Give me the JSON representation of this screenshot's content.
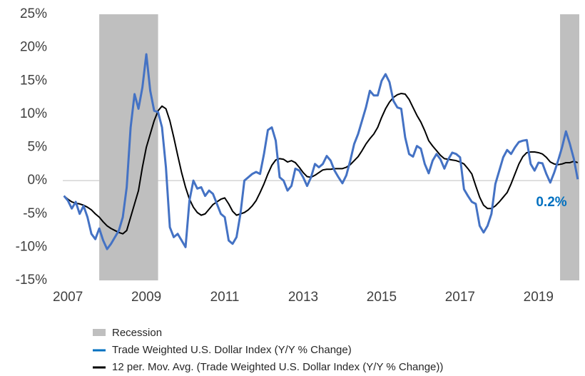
{
  "chart_data": {
    "type": "line",
    "x": [
      2006.9,
      2007.0,
      2007.1,
      2007.2,
      2007.3,
      2007.4,
      2007.5,
      2007.6,
      2007.7,
      2007.8,
      2007.9,
      2008.0,
      2008.1,
      2008.2,
      2008.3,
      2008.4,
      2008.5,
      2008.6,
      2008.7,
      2008.8,
      2008.9,
      2009.0,
      2009.1,
      2009.2,
      2009.3,
      2009.4,
      2009.5,
      2009.6,
      2009.7,
      2009.8,
      2009.9,
      2010.0,
      2010.1,
      2010.2,
      2010.3,
      2010.4,
      2010.5,
      2010.6,
      2010.7,
      2010.8,
      2010.9,
      2011.0,
      2011.1,
      2011.2,
      2011.3,
      2011.4,
      2011.5,
      2011.6,
      2011.7,
      2011.8,
      2011.9,
      2012.0,
      2012.1,
      2012.2,
      2012.3,
      2012.4,
      2012.5,
      2012.6,
      2012.7,
      2012.8,
      2012.9,
      2013.0,
      2013.1,
      2013.2,
      2013.3,
      2013.4,
      2013.5,
      2013.6,
      2013.7,
      2013.8,
      2013.9,
      2014.0,
      2014.1,
      2014.2,
      2014.3,
      2014.4,
      2014.5,
      2014.6,
      2014.7,
      2014.8,
      2014.9,
      2015.0,
      2015.1,
      2015.2,
      2015.3,
      2015.4,
      2015.5,
      2015.6,
      2015.7,
      2015.8,
      2015.9,
      2016.0,
      2016.1,
      2016.2,
      2016.3,
      2016.4,
      2016.5,
      2016.6,
      2016.7,
      2016.8,
      2016.9,
      2017.0,
      2017.1,
      2017.2,
      2017.3,
      2017.4,
      2017.5,
      2017.6,
      2017.7,
      2017.8,
      2017.9,
      2018.0,
      2018.1,
      2018.2,
      2018.3,
      2018.4,
      2018.5,
      2018.6,
      2018.7,
      2018.8,
      2018.9,
      2019.0,
      2019.1,
      2019.2,
      2019.3,
      2019.4,
      2019.5,
      2019.6,
      2019.7,
      2019.8,
      2019.9,
      2020.0
    ],
    "series": [
      {
        "name": "Trade Weighted U.S. Dollar Index (Y/Y % Change)",
        "color": "#4472c4",
        "legend_color": "#0070c0",
        "width": 3,
        "values": [
          -2.3,
          -3,
          -4.2,
          -3.2,
          -5,
          -3.8,
          -5.5,
          -8,
          -8.8,
          -7.2,
          -9,
          -10.3,
          -9.5,
          -8.5,
          -7.5,
          -5.5,
          -1,
          8,
          13,
          10.8,
          14,
          19,
          13.5,
          10.5,
          10.3,
          8,
          2,
          -7,
          -8.5,
          -8,
          -9,
          -10,
          -3,
          0,
          -1.2,
          -1,
          -2.3,
          -1.5,
          -2,
          -3.5,
          -5,
          -5.5,
          -9,
          -9.5,
          -8.5,
          -5,
          0,
          0.5,
          1,
          1.3,
          1,
          4,
          7.6,
          8,
          6,
          0.5,
          0,
          -1.5,
          -0.8,
          1.8,
          1.5,
          0.5,
          -0.8,
          0.5,
          2.5,
          2,
          2.5,
          3.7,
          3,
          1.5,
          0.5,
          -0.4,
          0.8,
          3,
          5.5,
          7,
          9,
          11,
          13.5,
          12.8,
          12.8,
          15,
          16,
          14.8,
          12,
          11,
          10.8,
          6.5,
          4,
          3.6,
          5.2,
          4.8,
          2.5,
          1.1,
          3,
          4,
          3.2,
          1.8,
          3.2,
          4.2,
          4,
          3.5,
          -1.3,
          -2.3,
          -3.2,
          -3.5,
          -6.8,
          -7.8,
          -6.8,
          -5,
          -0.5,
          1.5,
          3.5,
          4.6,
          4,
          5,
          5.8,
          6,
          6.1,
          2.5,
          1.5,
          2.7,
          2.6,
          1,
          -0.3,
          1.2,
          3,
          5,
          7.4,
          5.5,
          3.3,
          0.2
        ]
      },
      {
        "name": "12 per. Mov. Avg. (Trade Weighted U.S. Dollar Index (Y/Y % Change))",
        "color": "#000000",
        "width": 2,
        "values": [
          -2.3,
          -2.8,
          -3.2,
          -3.4,
          -3.5,
          -3.7,
          -4,
          -4.4,
          -5,
          -5.5,
          -6.2,
          -6.8,
          -7.2,
          -7.5,
          -7.8,
          -8,
          -7.5,
          -5.5,
          -3.5,
          -1.5,
          2,
          5,
          7,
          9,
          10.5,
          11.2,
          10.8,
          9,
          6.5,
          3.8,
          1.2,
          -1,
          -2.8,
          -4,
          -4.8,
          -5.2,
          -5,
          -4.3,
          -3.6,
          -3.2,
          -2.8,
          -2.6,
          -3.5,
          -4.6,
          -5.2,
          -5,
          -4.8,
          -4.4,
          -3.8,
          -3,
          -1.8,
          -0.5,
          1,
          2.3,
          3.1,
          3.3,
          3.2,
          2.8,
          3,
          2.7,
          2,
          1.2,
          0.6,
          0.5,
          0.8,
          1.2,
          1.6,
          1.7,
          1.7,
          1.8,
          1.8,
          1.8,
          2,
          2.4,
          3,
          3.6,
          4.5,
          5.5,
          6.3,
          7,
          8,
          9.5,
          10.8,
          11.8,
          12.5,
          12.9,
          13.1,
          13,
          12.2,
          11,
          9.8,
          8.8,
          7.5,
          6,
          5.2,
          4.5,
          3.8,
          3.3,
          3.2,
          3.1,
          3,
          2.8,
          2.5,
          1.8,
          1,
          -0.8,
          -2.5,
          -3.7,
          -4.2,
          -4.2,
          -3.8,
          -3.2,
          -2.5,
          -1.8,
          -0.5,
          1,
          2.5,
          3.6,
          4.2,
          4.3,
          4.3,
          4.2,
          4,
          3.5,
          2.8,
          2.5,
          2.4,
          2.5,
          2.7,
          2.7,
          2.9,
          2.7
        ]
      }
    ],
    "recession": {
      "name": "Recession",
      "color": "#bfbfbf",
      "periods": [
        [
          2007.8,
          2009.3
        ],
        [
          2019.55,
          2020.04
        ]
      ]
    },
    "annotation": {
      "text": "0.2%",
      "color": "#0070c0"
    },
    "xlim": [
      2006.87,
      2020.04
    ],
    "xticks": [
      2007,
      2009,
      2011,
      2013,
      2015,
      2017,
      2019
    ],
    "ylim": [
      -15,
      25
    ],
    "yticks": [
      {
        "value": -15,
        "label": "-15%"
      },
      {
        "value": -10,
        "label": "-10%"
      },
      {
        "value": -5,
        "label": "-5%"
      },
      {
        "value": 0,
        "label": "0%"
      },
      {
        "value": 5,
        "label": "5%"
      },
      {
        "value": 10,
        "label": "10%"
      },
      {
        "value": 15,
        "label": "15%"
      },
      {
        "value": 20,
        "label": "20%"
      },
      {
        "value": 25,
        "label": "25%"
      }
    ],
    "grid": false
  }
}
